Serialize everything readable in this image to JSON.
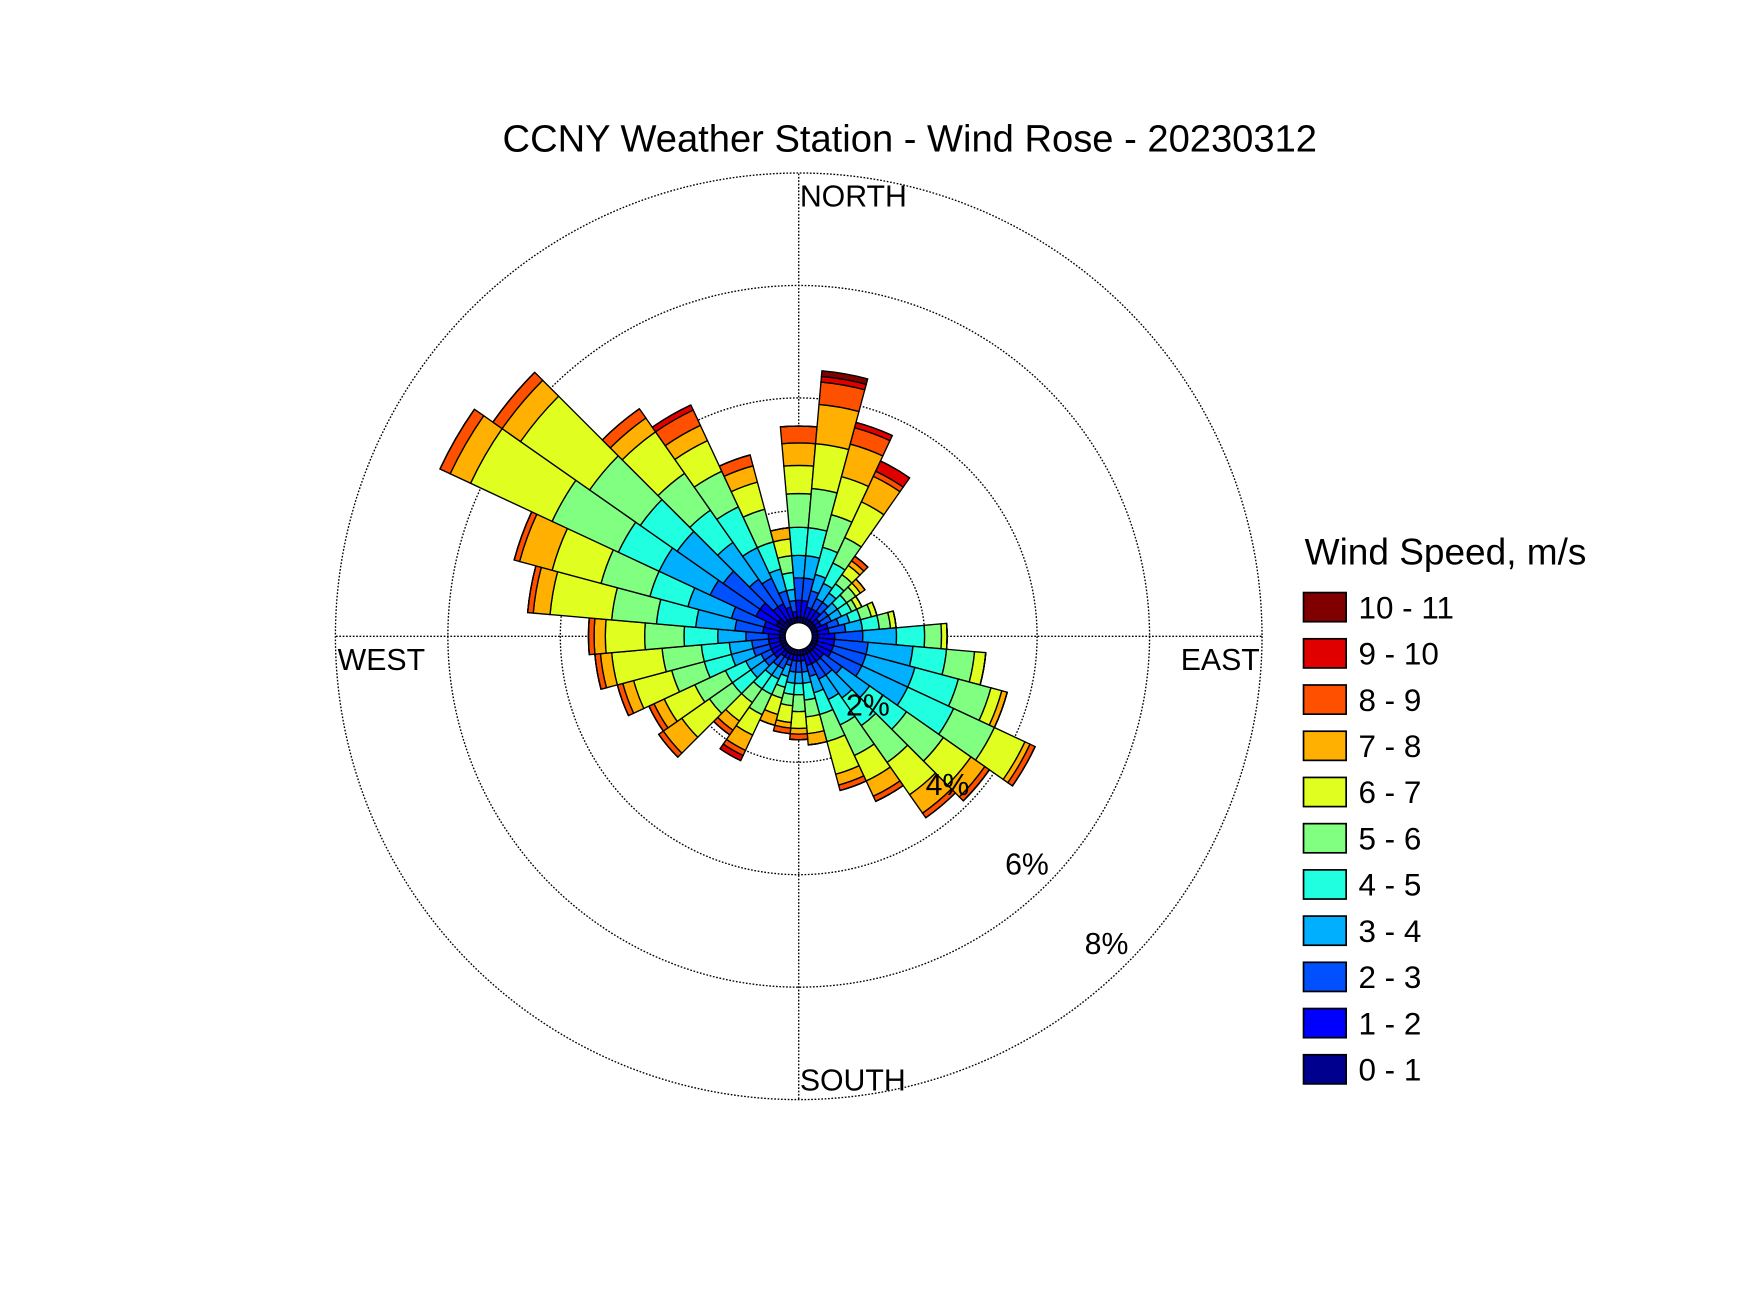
{
  "chart_data": {
    "type": "windrose",
    "title": "CCNY Weather Station - Wind Rose - 20230312",
    "legend_title": "Wind Speed, m/s",
    "x": [
      0,
      10,
      20,
      30,
      40,
      50,
      60,
      70,
      80,
      90,
      100,
      110,
      120,
      130,
      140,
      150,
      160,
      170,
      180,
      190,
      200,
      210,
      220,
      230,
      240,
      250,
      260,
      270,
      280,
      290,
      300,
      310,
      320,
      330,
      340,
      350
    ],
    "xticks": [
      {
        "value": 0,
        "label": "NORTH"
      },
      {
        "value": 90,
        "label": "EAST"
      },
      {
        "value": 180,
        "label": "SOUTH"
      },
      {
        "value": 270,
        "label": "WEST"
      }
    ],
    "ylim": [
      0,
      8
    ],
    "yticks": [
      {
        "value": 2,
        "label": "2%"
      },
      {
        "value": 4,
        "label": "4%"
      },
      {
        "value": 6,
        "label": "6%"
      },
      {
        "value": 8,
        "label": "8%"
      }
    ],
    "grid": true,
    "legend": "right",
    "series": [
      {
        "name": "0 - 1",
        "color": "#00008f",
        "values": [
          0.1,
          0.1,
          0.1,
          0.1,
          0.1,
          0.1,
          0.1,
          0.1,
          0.1,
          0.1,
          0.1,
          0.1,
          0.1,
          0.1,
          0.1,
          0.1,
          0.1,
          0.1,
          0.1,
          0.1,
          0.1,
          0.1,
          0.1,
          0.1,
          0.1,
          0.1,
          0.1,
          0.1,
          0.1,
          0.1,
          0.2,
          0.2,
          0.1,
          0.1,
          0.1,
          0.1
        ]
      },
      {
        "name": "1 - 2",
        "color": "#0000ff",
        "values": [
          0.3,
          0.3,
          0.2,
          0.2,
          0.2,
          0.1,
          0.1,
          0.2,
          0.2,
          0.3,
          0.3,
          0.3,
          0.3,
          0.2,
          0.2,
          0.2,
          0.2,
          0.1,
          0.1,
          0.1,
          0.1,
          0.1,
          0.1,
          0.2,
          0.2,
          0.2,
          0.2,
          0.2,
          0.3,
          0.3,
          0.4,
          0.4,
          0.3,
          0.3,
          0.2,
          0.1
        ]
      },
      {
        "name": "2 - 3",
        "color": "#0050ff",
        "values": [
          0.4,
          0.4,
          0.3,
          0.2,
          0.2,
          0.2,
          0.2,
          0.2,
          0.3,
          0.5,
          0.6,
          0.6,
          0.6,
          0.4,
          0.3,
          0.3,
          0.2,
          0.2,
          0.2,
          0.2,
          0.1,
          0.2,
          0.2,
          0.2,
          0.2,
          0.3,
          0.3,
          0.4,
          0.5,
          0.6,
          0.9,
          0.8,
          0.6,
          0.5,
          0.3,
          0.2
        ]
      },
      {
        "name": "3 - 4",
        "color": "#00b0ff",
        "values": [
          0.4,
          0.4,
          0.3,
          0.3,
          0.2,
          0.2,
          0.2,
          0.2,
          0.3,
          0.6,
          0.8,
          0.9,
          0.9,
          0.6,
          0.5,
          0.4,
          0.3,
          0.2,
          0.2,
          0.2,
          0.2,
          0.2,
          0.2,
          0.3,
          0.3,
          0.4,
          0.4,
          0.5,
          0.7,
          0.8,
          1.0,
          1.0,
          0.8,
          0.6,
          0.4,
          0.2
        ]
      },
      {
        "name": "4 - 5",
        "color": "#20ffe0",
        "values": [
          0.5,
          0.5,
          0.5,
          0.4,
          0.2,
          0.2,
          0.2,
          0.2,
          0.3,
          0.5,
          0.6,
          0.8,
          0.9,
          0.8,
          0.6,
          0.5,
          0.4,
          0.3,
          0.2,
          0.2,
          0.2,
          0.3,
          0.3,
          0.4,
          0.4,
          0.5,
          0.5,
          0.6,
          0.7,
          0.7,
          0.8,
          0.8,
          0.7,
          0.8,
          0.5,
          0.3
        ]
      },
      {
        "name": "5 - 6",
        "color": "#80ff80",
        "values": [
          0.6,
          0.7,
          0.6,
          0.5,
          0.2,
          0.2,
          0.1,
          0.2,
          0.2,
          0.3,
          0.5,
          0.6,
          0.8,
          0.8,
          0.8,
          0.6,
          0.5,
          0.3,
          0.3,
          0.2,
          0.2,
          0.4,
          0.3,
          0.5,
          0.6,
          0.6,
          0.7,
          0.7,
          0.8,
          0.9,
          1.3,
          1.1,
          0.8,
          0.7,
          0.6,
          0.3
        ]
      },
      {
        "name": "6 - 7",
        "color": "#e0ff20",
        "values": [
          0.5,
          0.8,
          0.7,
          0.7,
          0.2,
          0.1,
          0.1,
          0.1,
          0.1,
          0.1,
          0.2,
          0.2,
          0.6,
          0.6,
          0.7,
          0.5,
          0.6,
          0.3,
          0.3,
          0.3,
          0.3,
          0.4,
          0.4,
          0.6,
          0.6,
          0.7,
          0.9,
          0.7,
          1.1,
          0.9,
          1.6,
          1.5,
          0.9,
          0.6,
          0.5,
          0.3
        ]
      },
      {
        "name": "7 - 8",
        "color": "#ffb000",
        "values": [
          0.4,
          0.7,
          0.6,
          0.5,
          0.1,
          0.1,
          0,
          0,
          0,
          0,
          0,
          0.1,
          0.1,
          0.3,
          0.4,
          0.3,
          0.2,
          0.2,
          0.1,
          0.1,
          0.2,
          0.3,
          0.2,
          0.4,
          0.2,
          0.2,
          0.2,
          0.2,
          0.3,
          0.6,
          0.4,
          0.4,
          0.3,
          0.3,
          0.3,
          0.2
        ]
      },
      {
        "name": "8 - 9",
        "color": "#ff5000",
        "values": [
          0.3,
          0.4,
          0.3,
          0.1,
          0.1,
          0,
          0,
          0,
          0,
          0,
          0,
          0,
          0.1,
          0.1,
          0.1,
          0.1,
          0.1,
          0,
          0.1,
          0.1,
          0,
          0.1,
          0.1,
          0.1,
          0.1,
          0.1,
          0.1,
          0.1,
          0.1,
          0.1,
          0.2,
          0.2,
          0.2,
          0.3,
          0.2,
          0
        ]
      },
      {
        "name": "9 - 10",
        "color": "#e00000",
        "values": [
          0,
          0.1,
          0.1,
          0.2,
          0,
          0,
          0,
          0,
          0,
          0,
          0,
          0,
          0,
          0,
          0,
          0,
          0,
          0,
          0,
          0,
          0,
          0.1,
          0,
          0,
          0,
          0,
          0,
          0,
          0,
          0,
          0,
          0,
          0,
          0.1,
          0,
          0
        ]
      },
      {
        "name": "10 - 11",
        "color": "#800000",
        "values": [
          0,
          0.1,
          0,
          0,
          0,
          0,
          0,
          0,
          0,
          0,
          0,
          0,
          0,
          0,
          0,
          0,
          0,
          0,
          0,
          0,
          0,
          0,
          0,
          0,
          0,
          0,
          0,
          0,
          0,
          0,
          0,
          0,
          0,
          0,
          0,
          0
        ]
      }
    ]
  }
}
